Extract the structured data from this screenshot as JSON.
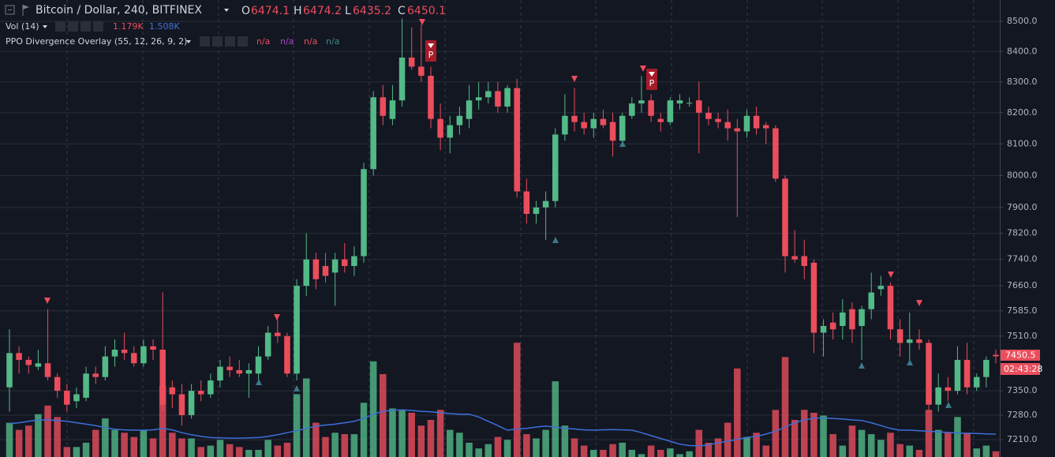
{
  "chart_data": {
    "type": "candlestick",
    "title": "Bitcoin / Dollar, 240, BITFINEX",
    "ohlc_legend": [
      {
        "label": "O",
        "value": 6474.1
      },
      {
        "label": "H",
        "value": 6474.2
      },
      {
        "label": "L",
        "value": 6435.2
      },
      {
        "label": "C",
        "value": 6450.1
      }
    ],
    "indicators": [
      {
        "name": "Vol (14)",
        "values": [
          "1.179K",
          "1.508K"
        ]
      },
      {
        "name": "PPO Divergence Overlay (55, 12, 26, 9, 2)",
        "values": [
          "n/a",
          "n/a",
          "n/a",
          "n/a"
        ]
      }
    ],
    "last_price": 7450.5,
    "countdown": "02:43:28",
    "annotations": [
      "P",
      "P"
    ],
    "log_scale": true,
    "grid": true,
    "up_color": "#53b987",
    "down_color": "#eb4d5c",
    "volume_ma_color": "#3d6fd9",
    "ylim": [
      7161,
      8572
    ],
    "yticks": [
      {
        "value": 8500,
        "label": "8500.0"
      },
      {
        "value": 8400,
        "label": "8400.0"
      },
      {
        "value": 8300,
        "label": "8300.0"
      },
      {
        "value": 8200,
        "label": "8200.0"
      },
      {
        "value": 8100,
        "label": "8100.0"
      },
      {
        "value": 8000,
        "label": "8000.0"
      },
      {
        "value": 7900,
        "label": "7900.0"
      },
      {
        "value": 7820,
        "label": "7820.0"
      },
      {
        "value": 7740,
        "label": "7740.0"
      },
      {
        "value": 7660,
        "label": "7660.0"
      },
      {
        "value": 7585,
        "label": "7585.0"
      },
      {
        "value": 7510,
        "label": "7510.0"
      },
      {
        "value": 7350,
        "label": "7350.0"
      },
      {
        "value": 7280,
        "label": "7280.0"
      },
      {
        "value": 7210,
        "label": "7210.0"
      }
    ],
    "y2lim": [
      0,
      16
    ],
    "open": [
      7360,
      7460,
      7440,
      7420,
      7430,
      7390,
      7350,
      7320,
      7330,
      7400,
      7390,
      7450,
      7470,
      7460,
      7430,
      7480,
      7470,
      7360,
      7340,
      7280,
      7350,
      7340,
      7380,
      7420,
      7410,
      7400,
      7400,
      7450,
      7520,
      7510,
      7400,
      7660,
      7740,
      7720,
      7700,
      7740,
      7720,
      7750,
      8020,
      8250,
      8180,
      8240,
      8380,
      8350,
      8320,
      8180,
      8120,
      8160,
      8180,
      8240,
      8250,
      8270,
      8220,
      8280,
      7950,
      7880,
      7900,
      7920,
      8130,
      8190,
      8170,
      8150,
      8180,
      8170,
      8110,
      8190,
      8230,
      8240,
      8180,
      8170,
      8230,
      8230,
      8240,
      8200,
      8180,
      8170,
      8150,
      8140,
      8190,
      8160,
      8150,
      7990,
      7750,
      7750,
      7730,
      7520,
      7550,
      7540,
      7590,
      7540,
      7590,
      7650,
      7660,
      7530,
      7490,
      7500,
      7490,
      7310,
      7360,
      7350,
      7440,
      7360,
      7390,
      7455
    ],
    "high": [
      7530,
      7480,
      7450,
      7470,
      7590,
      7400,
      7370,
      7360,
      7420,
      7420,
      7480,
      7500,
      7520,
      7480,
      7500,
      7500,
      7640,
      7380,
      7370,
      7370,
      7380,
      7400,
      7440,
      7450,
      7440,
      7430,
      7480,
      7540,
      7560,
      7520,
      7680,
      7820,
      7760,
      7760,
      7760,
      7790,
      7780,
      8040,
      8270,
      8290,
      8290,
      8510,
      8480,
      8490,
      8350,
      8230,
      8190,
      8220,
      8290,
      8300,
      8300,
      8300,
      8290,
      8310,
      7990,
      7920,
      7950,
      8150,
      8260,
      8280,
      8200,
      8200,
      8210,
      8200,
      8200,
      8250,
      8320,
      8260,
      8200,
      8250,
      8260,
      8250,
      8300,
      8220,
      8200,
      8210,
      8180,
      8210,
      8220,
      8170,
      8160,
      8000,
      7830,
      7800,
      7740,
      7560,
      7580,
      7620,
      7610,
      7600,
      7700,
      7690,
      7670,
      7560,
      7580,
      7530,
      7500,
      7400,
      7390,
      7480,
      7490,
      7400,
      7450,
      7470
    ],
    "low": [
      7290,
      7400,
      7400,
      7410,
      7380,
      7330,
      7290,
      7300,
      7320,
      7370,
      7380,
      7420,
      7440,
      7420,
      7420,
      7440,
      7290,
      7300,
      7250,
      7270,
      7320,
      7330,
      7360,
      7390,
      7390,
      7330,
      7380,
      7440,
      7490,
      7390,
      7380,
      7630,
      7650,
      7670,
      7600,
      7700,
      7690,
      7730,
      8000,
      8160,
      8160,
      8220,
      8340,
      8300,
      8150,
      8080,
      8070,
      8130,
      8150,
      8210,
      8230,
      8200,
      8200,
      7930,
      7850,
      7850,
      7800,
      7900,
      8110,
      8140,
      8130,
      8120,
      8150,
      8060,
      8090,
      8180,
      8200,
      8170,
      8140,
      8160,
      8210,
      8220,
      8070,
      8160,
      8150,
      8110,
      7870,
      8120,
      8130,
      8100,
      7980,
      7700,
      7730,
      7680,
      7460,
      7450,
      7500,
      7500,
      7490,
      7440,
      7560,
      7630,
      7500,
      7450,
      7440,
      7470,
      7290,
      7290,
      7320,
      7340,
      7340,
      7350,
      7360,
      7430
    ],
    "close": [
      7460,
      7440,
      7425,
      7430,
      7390,
      7350,
      7310,
      7340,
      7400,
      7390,
      7450,
      7470,
      7460,
      7430,
      7480,
      7470,
      7310,
      7340,
      7280,
      7350,
      7340,
      7380,
      7420,
      7410,
      7400,
      7410,
      7450,
      7520,
      7510,
      7400,
      7660,
      7740,
      7680,
      7690,
      7740,
      7720,
      7750,
      8020,
      8250,
      8190,
      8240,
      8380,
      8350,
      8320,
      8180,
      8120,
      8160,
      8190,
      8240,
      8250,
      8270,
      8220,
      8280,
      7950,
      7880,
      7900,
      7920,
      8130,
      8190,
      8170,
      8150,
      8180,
      8160,
      8110,
      8190,
      8230,
      8240,
      8190,
      8170,
      8240,
      8240,
      8232,
      8200,
      8180,
      8170,
      8150,
      8140,
      8190,
      8150,
      8150,
      7990,
      7750,
      7740,
      7720,
      7520,
      7540,
      7530,
      7580,
      7530,
      7590,
      7640,
      7660,
      7530,
      7490,
      7500,
      7490,
      7310,
      7360,
      7350,
      7440,
      7360,
      7390,
      7440,
      7450.5
    ],
    "volume": [
      1.2,
      0.95,
      1.1,
      1.5,
      1.8,
      1.4,
      0.35,
      0.35,
      0.5,
      0.95,
      1.35,
      0.95,
      0.85,
      0.7,
      0.95,
      0.65,
      2.5,
      0.85,
      0.65,
      0.65,
      0.35,
      0.4,
      0.6,
      0.45,
      0.35,
      0.25,
      0.25,
      0.6,
      0.4,
      0.5,
      2.2,
      2.75,
      1.2,
      0.7,
      0.85,
      0.8,
      0.8,
      1.9,
      3.35,
      2.9,
      1.7,
      1.65,
      1.55,
      1.1,
      1.3,
      1.65,
      0.95,
      0.85,
      0.5,
      0.3,
      0.45,
      0.7,
      0.6,
      4.0,
      0.8,
      0.65,
      0.95,
      2.65,
      1.1,
      0.65,
      0.4,
      0.25,
      0.25,
      0.45,
      0.5,
      0.25,
      0.1,
      0.4,
      0.25,
      0.3,
      0.1,
      0.2,
      0.95,
      0.5,
      0.65,
      1.2,
      3.1,
      0.7,
      0.85,
      0.4,
      1.65,
      3.5,
      1.3,
      1.65,
      1.55,
      1.45,
      0.8,
      0.4,
      1.1,
      0.95,
      0.8,
      0.6,
      0.85,
      0.45,
      0.4,
      0.25,
      1.65,
      0.95,
      0.85,
      1.4,
      0.85,
      0.3,
      0.4,
      0.2
    ],
    "volume_ma": [
      1.17,
      1.2,
      1.25,
      1.3,
      1.3,
      1.28,
      1.25,
      1.2,
      1.15,
      1.1,
      1.03,
      0.97,
      0.95,
      0.94,
      0.94,
      0.95,
      1.0,
      0.95,
      0.85,
      0.78,
      0.72,
      0.68,
      0.67,
      0.66,
      0.66,
      0.67,
      0.68,
      0.72,
      0.78,
      0.85,
      0.92,
      1.0,
      1.08,
      1.12,
      1.15,
      1.2,
      1.25,
      1.35,
      1.5,
      1.6,
      1.64,
      1.65,
      1.63,
      1.6,
      1.58,
      1.55,
      1.52,
      1.5,
      1.5,
      1.4,
      1.25,
      1.1,
      0.94,
      0.98,
      1.0,
      1.05,
      1.08,
      1.05,
      1.0,
      0.98,
      0.95,
      0.94,
      0.95,
      0.96,
      0.95,
      0.94,
      0.85,
      0.75,
      0.65,
      0.55,
      0.45,
      0.4,
      0.39,
      0.42,
      0.5,
      0.55,
      0.62,
      0.68,
      0.72,
      0.8,
      0.9,
      1.05,
      1.2,
      1.3,
      1.36,
      1.36,
      1.35,
      1.33,
      1.3,
      1.28,
      1.2,
      1.1,
      1.0,
      0.94,
      0.94,
      0.92,
      0.9,
      0.88,
      0.86,
      0.84,
      0.83,
      0.82,
      0.81,
      0.8
    ]
  }
}
